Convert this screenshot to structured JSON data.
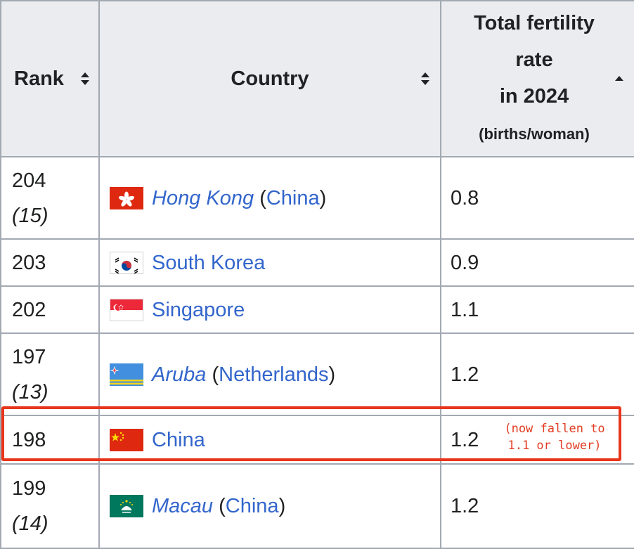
{
  "table": {
    "headers": {
      "rank": "Rank",
      "country": "Country",
      "rate_line1": "Total fertility",
      "rate_line2": "rate",
      "rate_line3": "in 2024",
      "rate_line4": "(births/woman)"
    },
    "rows": [
      {
        "rank": "204",
        "subrank": "(15)",
        "country": "Hong Kong",
        "country_italic": true,
        "parent": "China",
        "rate": "0.8",
        "flag": "hong-kong-flag"
      },
      {
        "rank": "203",
        "subrank": "",
        "country": "South Korea",
        "country_italic": false,
        "parent": "",
        "rate": "0.9",
        "flag": "south-korea-flag"
      },
      {
        "rank": "202",
        "subrank": "",
        "country": "Singapore",
        "country_italic": false,
        "parent": "",
        "rate": "1.1",
        "flag": "singapore-flag"
      },
      {
        "rank": "197",
        "subrank": "(13)",
        "country": "Aruba",
        "country_italic": true,
        "parent": "Netherlands",
        "rate": "1.2",
        "flag": "aruba-flag"
      },
      {
        "rank": "198",
        "subrank": "",
        "country": "China",
        "country_italic": false,
        "parent": "",
        "rate": "1.2",
        "flag": "china-flag"
      },
      {
        "rank": "199",
        "subrank": "(14)",
        "country": "Macau",
        "country_italic": true,
        "parent": "China",
        "rate": "1.2",
        "flag": "macau-flag"
      }
    ]
  },
  "annotation": {
    "line1": "(now fallen to",
    "line2": "1.1 or lower)",
    "color": "#e23d22"
  },
  "colors": {
    "link": "#3366cc",
    "header_bg": "#eaecf0",
    "border": "#a2a9b1"
  }
}
